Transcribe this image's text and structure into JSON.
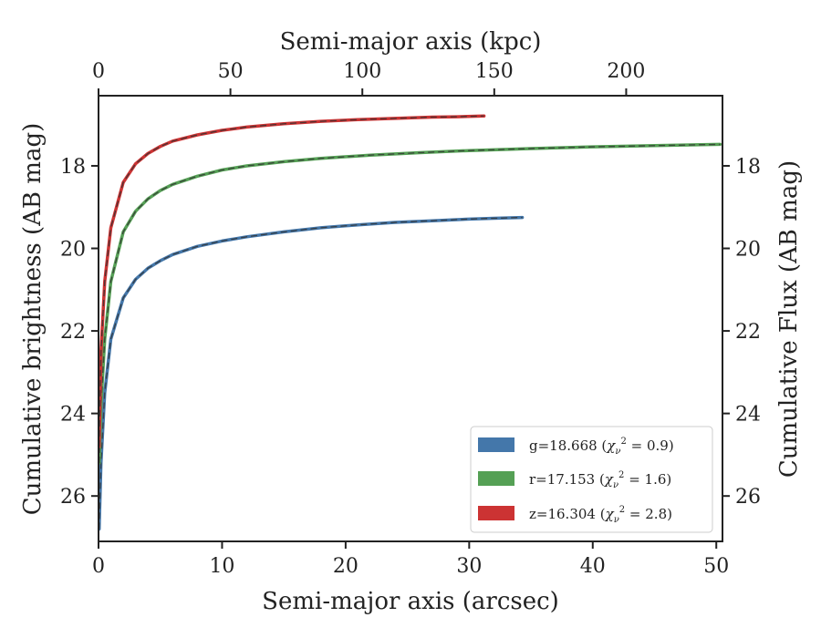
{
  "chart_data": {
    "type": "line",
    "xlabel": "Semi-major axis (arcsec)",
    "ylabel": "Cumulative brightness (AB mag)",
    "x2label": "Semi-major axis (kpc)",
    "y2label": "Cumulative Flux (AB mag)",
    "xlim": [
      0,
      50.5
    ],
    "ylim": [
      27.1,
      16.3
    ],
    "x2lim": [
      0,
      236.5
    ],
    "y_inverted": true,
    "xticks": [
      0,
      10,
      20,
      30,
      40,
      50
    ],
    "yticks": [
      18,
      20,
      22,
      24,
      26
    ],
    "x2ticks": [
      0,
      50,
      100,
      150,
      200
    ],
    "grid": false,
    "legend_position": "bottom-right",
    "series": [
      {
        "name": "g",
        "legend_label": "g=18.668",
        "chi2": "0.9",
        "color": "#4477aa",
        "x": [
          0.05,
          0.2,
          0.5,
          1,
          2,
          3,
          4,
          5,
          6,
          8,
          10,
          12,
          15,
          18,
          21,
          24,
          27,
          30,
          32,
          34.3
        ],
        "y": [
          26.8,
          25.2,
          23.5,
          22.2,
          21.2,
          20.75,
          20.48,
          20.3,
          20.15,
          19.95,
          19.82,
          19.72,
          19.6,
          19.5,
          19.43,
          19.37,
          19.33,
          19.29,
          19.27,
          19.25
        ]
      },
      {
        "name": "r",
        "legend_label": "r=17.153",
        "chi2": "1.6",
        "color": "#55a055",
        "x": [
          0.05,
          0.2,
          0.5,
          1,
          2,
          3,
          4,
          5,
          6,
          8,
          10,
          12,
          15,
          18,
          22,
          26,
          30,
          35,
          40,
          45,
          50.3
        ],
        "y": [
          25.2,
          23.8,
          22.2,
          20.8,
          19.6,
          19.1,
          18.8,
          18.6,
          18.45,
          18.25,
          18.1,
          18.0,
          17.9,
          17.82,
          17.74,
          17.68,
          17.63,
          17.58,
          17.54,
          17.51,
          17.48
        ]
      },
      {
        "name": "z",
        "legend_label": "z=16.304",
        "chi2": "2.8",
        "color": "#cc3333",
        "x": [
          0.05,
          0.2,
          0.5,
          1,
          2,
          3,
          4,
          5,
          6,
          8,
          10,
          12,
          15,
          18,
          21,
          24,
          27,
          29,
          31.2
        ],
        "y": [
          24.8,
          22.5,
          20.8,
          19.5,
          18.4,
          17.95,
          17.7,
          17.53,
          17.4,
          17.25,
          17.14,
          17.06,
          16.98,
          16.92,
          16.88,
          16.85,
          16.82,
          16.81,
          16.79
        ]
      }
    ]
  }
}
